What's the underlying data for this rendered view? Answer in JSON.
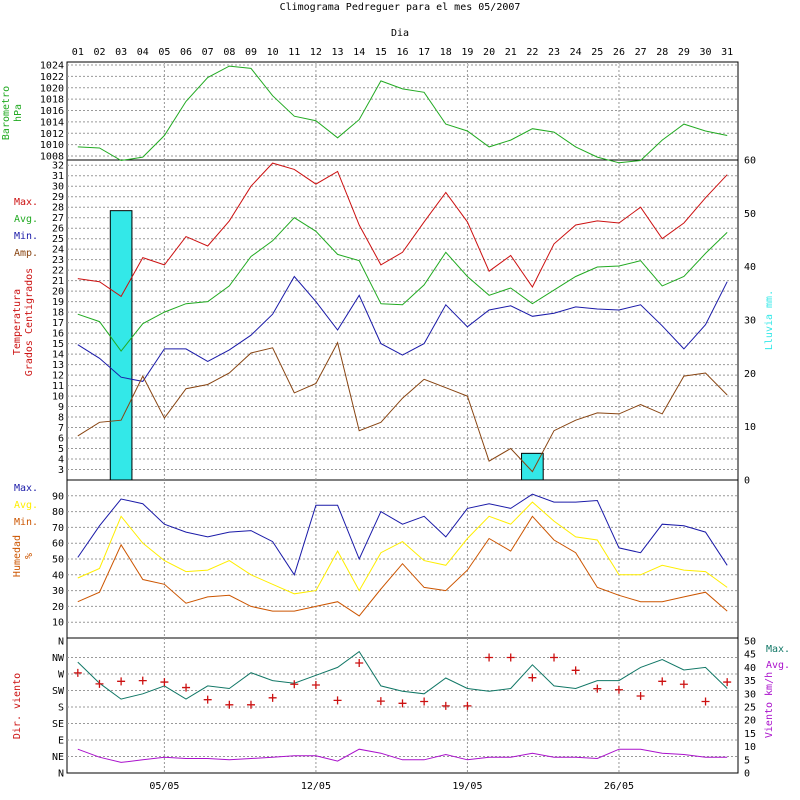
{
  "title": "Climograma Pedreguer para el mes 05/2007",
  "x_axis_title": "Dia",
  "days": [
    "01",
    "02",
    "03",
    "04",
    "05",
    "06",
    "07",
    "08",
    "09",
    "10",
    "11",
    "12",
    "13",
    "14",
    "15",
    "16",
    "17",
    "18",
    "19",
    "20",
    "21",
    "22",
    "23",
    "24",
    "25",
    "26",
    "27",
    "28",
    "29",
    "30",
    "31"
  ],
  "week_labels": [
    {
      "day": 5,
      "label": "05/05"
    },
    {
      "day": 12,
      "label": "12/05"
    },
    {
      "day": 19,
      "label": "19/05"
    },
    {
      "day": 26,
      "label": "26/05"
    }
  ],
  "colors": {
    "green": "#22aa22",
    "red": "#cc1111",
    "blue": "#1a1aa8",
    "cyan": "#33e8e8",
    "brown": "#884411",
    "yellow": "#ffee00",
    "orange": "#cc5500",
    "teal": "#117766",
    "purple": "#aa11cc",
    "grid": "#999999"
  },
  "chart_data": [
    {
      "id": "barometer",
      "type": "line",
      "ylabel": [
        "Barometro",
        "hPa"
      ],
      "ylim": [
        1008,
        1024
      ],
      "yticks": [
        1008,
        1010,
        1012,
        1014,
        1016,
        1018,
        1020,
        1022,
        1024
      ],
      "series": [
        {
          "name": "",
          "color": "#22aa22",
          "values": [
            1009.6,
            1009.4,
            1007.2,
            1007.8,
            1011.6,
            1017.6,
            1021.8,
            1023.8,
            1023.4,
            1018.6,
            1015,
            1014.2,
            1011.2,
            1014.4,
            1021.2,
            1019.8,
            1019.2,
            1013.6,
            1012.4,
            1009.6,
            1010.8,
            1012.8,
            1012.2,
            1009.6,
            1007.8,
            1006.8,
            1007.2,
            1010.8,
            1013.6,
            1012.4,
            1011.6
          ]
        }
      ]
    },
    {
      "id": "temperature",
      "type": "line+bar",
      "ylabel": [
        "Temperatura",
        "Grados Centigrados"
      ],
      "ylim": [
        2,
        32.5
      ],
      "yticks": [
        3,
        4,
        5,
        6,
        7,
        8,
        9,
        10,
        11,
        12,
        13,
        14,
        15,
        16,
        17,
        18,
        19,
        20,
        21,
        22,
        23,
        24,
        25,
        26,
        27,
        28,
        29,
        30,
        31,
        32
      ],
      "y2label": "Lluvia mm.",
      "y2lim": [
        0,
        60
      ],
      "y2ticks": [
        0,
        10,
        20,
        30,
        40,
        50,
        60
      ],
      "legend": [
        {
          "label": "Max.",
          "color": "#cc1111"
        },
        {
          "label": "Avg.",
          "color": "#22aa22"
        },
        {
          "label": "Min.",
          "color": "#1a1aa8"
        },
        {
          "label": "Amp.",
          "color": "#884411"
        }
      ],
      "series": [
        {
          "name": "Max.",
          "color": "#cc1111",
          "values": [
            21.2,
            20.9,
            19.5,
            23.2,
            22.5,
            25.2,
            24.3,
            26.7,
            30,
            32.2,
            31.6,
            30.2,
            31.4,
            26.3,
            22.5,
            23.7,
            26.6,
            29.4,
            26.6,
            21.9,
            23.4,
            20.4,
            24.5,
            26.3,
            26.7,
            26.5,
            28,
            25,
            26.5,
            28.9,
            31.1
          ]
        },
        {
          "name": "Avg.",
          "color": "#22aa22",
          "values": [
            17.8,
            17.1,
            14.3,
            16.9,
            18,
            18.8,
            19,
            20.5,
            23.3,
            24.8,
            27,
            25.7,
            23.5,
            22.9,
            18.8,
            18.7,
            20.6,
            23.7,
            21.4,
            19.6,
            20.3,
            18.8,
            20.1,
            21.4,
            22.3,
            22.4,
            22.9,
            20.5,
            21.4,
            23.6,
            25.6
          ]
        },
        {
          "name": "Min.",
          "color": "#1a1aa8",
          "values": [
            14.9,
            13.6,
            11.8,
            11.4,
            14.5,
            14.5,
            13.3,
            14.4,
            15.8,
            17.8,
            21.4,
            19,
            16.3,
            19.6,
            15,
            13.9,
            15,
            18.7,
            16.6,
            18.2,
            18.6,
            17.6,
            17.9,
            18.5,
            18.3,
            18.2,
            18.7,
            16.7,
            14.5,
            16.8,
            20.9
          ]
        },
        {
          "name": "Amp.",
          "color": "#884411",
          "values": [
            6.2,
            7.5,
            7.7,
            11.9,
            7.9,
            10.7,
            11.1,
            12.2,
            14.1,
            14.6,
            10.3,
            11.2,
            15.1,
            6.7,
            7.5,
            9.8,
            11.6,
            10.8,
            10,
            3.8,
            5,
            2.8,
            6.7,
            7.7,
            8.4,
            8.3,
            9.2,
            8.3,
            11.9,
            12.2,
            10.1
          ]
        }
      ],
      "rain": {
        "name": "Lluvia",
        "color": "#33e8e8",
        "bars": [
          {
            "day": 3,
            "value": 50.5
          },
          {
            "day": 22,
            "value": 5
          }
        ]
      }
    },
    {
      "id": "humidity",
      "type": "line",
      "ylabel": [
        "Humedad",
        "%"
      ],
      "ylim": [
        0,
        100
      ],
      "yticks": [
        10,
        20,
        30,
        40,
        50,
        60,
        70,
        80,
        90
      ],
      "legend": [
        {
          "label": "Max.",
          "color": "#1a1aa8"
        },
        {
          "label": "Avg.",
          "color": "#ffee00"
        },
        {
          "label": "Min.",
          "color": "#cc5500"
        }
      ],
      "series": [
        {
          "name": "Max.",
          "color": "#1a1aa8",
          "values": [
            51,
            71,
            88,
            85,
            72,
            67,
            64,
            67,
            68,
            61,
            40,
            84,
            84,
            50,
            80,
            72,
            77,
            64,
            82,
            85,
            82,
            91,
            86,
            86,
            87,
            57,
            54,
            72,
            71,
            67,
            46
          ]
        },
        {
          "name": "Avg.",
          "color": "#ffee00",
          "values": [
            38,
            44,
            77,
            60,
            49,
            42,
            43,
            49,
            40,
            34,
            28,
            30,
            55,
            30,
            54,
            61,
            49,
            46,
            63,
            77,
            72,
            86,
            74,
            64,
            62,
            40,
            40,
            46,
            43,
            42,
            32
          ]
        },
        {
          "name": "Min.",
          "color": "#cc5500",
          "values": [
            23,
            29,
            59,
            37,
            34,
            22,
            26,
            27,
            20,
            17,
            17,
            20,
            23,
            14,
            31,
            47,
            32,
            30,
            43,
            63,
            55,
            77,
            62,
            54,
            32,
            27,
            23,
            23,
            26,
            29,
            17
          ]
        }
      ]
    },
    {
      "id": "wind",
      "type": "line+scatter",
      "ylabel": "Dir. viento",
      "direction_ticks": [
        {
          "label": "N",
          "deg": 0
        },
        {
          "label": "NE",
          "deg": 45
        },
        {
          "label": "E",
          "deg": 90
        },
        {
          "label": "SE",
          "deg": 135
        },
        {
          "label": "S",
          "deg": 180
        },
        {
          "label": "SW",
          "deg": 225
        },
        {
          "label": "W",
          "deg": 270
        },
        {
          "label": "NW",
          "deg": 315
        },
        {
          "label": "N",
          "deg": 360
        }
      ],
      "y2label": "Viento km/h",
      "y2lim": [
        0,
        50
      ],
      "y2ticks": [
        0,
        5,
        10,
        15,
        20,
        25,
        30,
        35,
        40,
        45,
        50
      ],
      "legend": [
        {
          "label": "Max.",
          "color": "#117766"
        },
        {
          "label": "Avg.",
          "color": "#aa11cc"
        }
      ],
      "direction": {
        "name": "Dir. viento",
        "color": "#cc1111",
        "values": [
          273,
          243,
          250,
          252,
          248,
          233,
          200,
          186,
          186,
          205,
          242,
          240,
          198,
          300,
          196,
          190,
          195,
          183,
          183,
          315,
          315,
          260,
          315,
          280,
          230,
          227,
          210,
          250,
          242,
          195,
          248
        ]
      },
      "series": [
        {
          "name": "Max.",
          "color": "#117766",
          "values": [
            42,
            34,
            28,
            30,
            33,
            28,
            33,
            32,
            38,
            35,
            34,
            37,
            40,
            46,
            33,
            31,
            30,
            36,
            32,
            31,
            32,
            41,
            33,
            32,
            35,
            35,
            40,
            43,
            39,
            40,
            32
          ]
        },
        {
          "name": "Avg.",
          "color": "#aa11cc",
          "values": [
            9,
            6,
            4,
            5,
            6,
            5.5,
            5.5,
            5,
            5.5,
            6,
            6.5,
            6.5,
            4.5,
            9,
            7.5,
            5,
            5,
            7,
            5,
            6,
            6,
            7.5,
            6,
            6,
            5.5,
            9,
            9,
            7.5,
            7,
            6,
            6
          ]
        }
      ]
    }
  ]
}
